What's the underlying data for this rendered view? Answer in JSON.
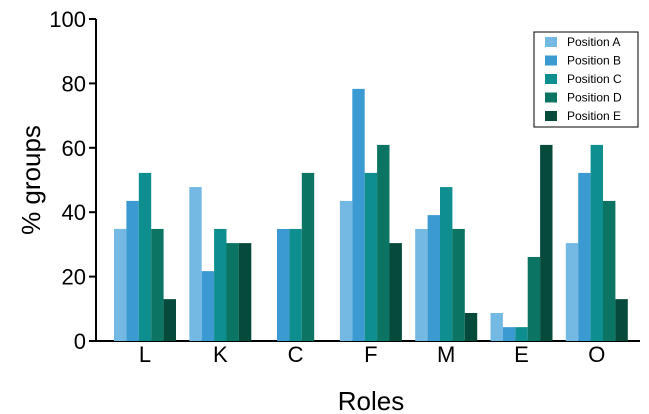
{
  "chart_data": {
    "type": "bar",
    "title": "",
    "xlabel": "Roles",
    "ylabel": "% groups",
    "ylim": [
      0,
      100
    ],
    "yticks": [
      0,
      20,
      40,
      60,
      80,
      100
    ],
    "categories": [
      "L",
      "K",
      "C",
      "F",
      "M",
      "E",
      "O"
    ],
    "legend_position": "top-right",
    "grid": false,
    "series": [
      {
        "name": "Position A",
        "color": "#74b8e4",
        "values": [
          34.8,
          47.8,
          0,
          43.5,
          34.8,
          8.7,
          30.4
        ]
      },
      {
        "name": "Position B",
        "color": "#3b9ad2",
        "values": [
          43.5,
          21.7,
          34.8,
          78.3,
          39.1,
          4.3,
          52.2
        ]
      },
      {
        "name": "Position C",
        "color": "#0e8e8e",
        "values": [
          52.2,
          34.8,
          34.8,
          52.2,
          47.8,
          4.3,
          60.9
        ]
      },
      {
        "name": "Position D",
        "color": "#0b7462",
        "values": [
          34.8,
          30.4,
          52.2,
          60.9,
          34.8,
          26.1,
          43.5
        ]
      },
      {
        "name": "Position E",
        "color": "#054a3a",
        "values": [
          13.0,
          30.4,
          0,
          30.4,
          8.7,
          60.9,
          13.0
        ]
      }
    ]
  }
}
